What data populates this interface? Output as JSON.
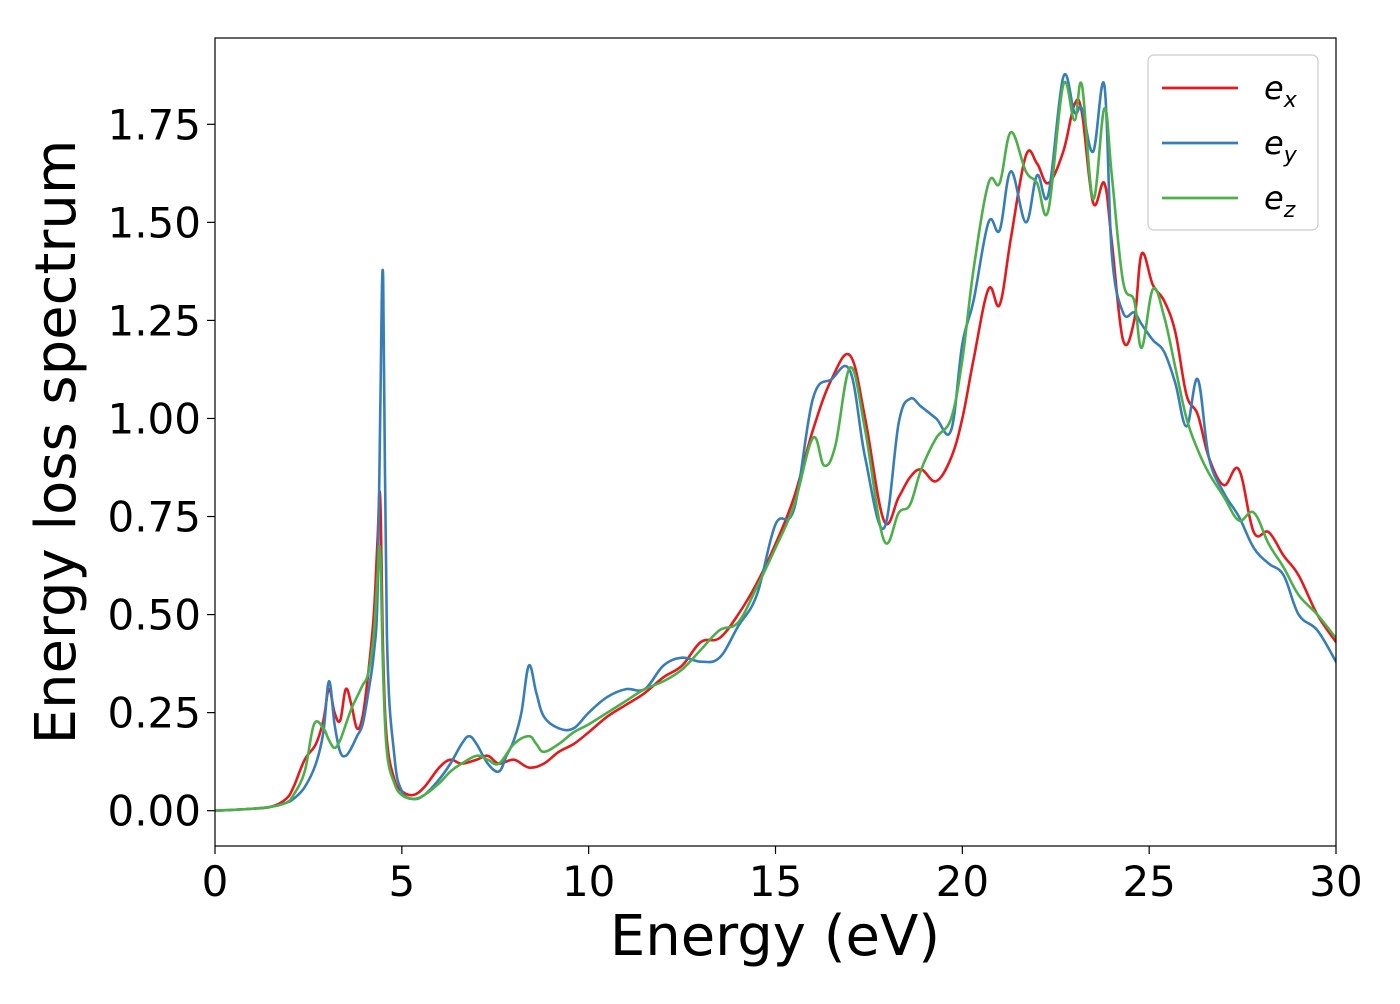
{
  "chart_data": {
    "type": "line",
    "title": "",
    "xlabel": "Energy (eV)",
    "ylabel": "Energy loss spectrum",
    "xlim": [
      0,
      30
    ],
    "ylim": [
      -0.09,
      1.97
    ],
    "xticks": [
      0,
      5,
      10,
      15,
      20,
      25,
      30
    ],
    "xtick_labels": [
      "0",
      "5",
      "10",
      "15",
      "20",
      "25",
      "30"
    ],
    "yticks": [
      0.0,
      0.25,
      0.5,
      0.75,
      1.0,
      1.25,
      1.5,
      1.75
    ],
    "ytick_labels": [
      "0.00",
      "0.25",
      "0.50",
      "0.75",
      "1.00",
      "1.25",
      "1.50",
      "1.75"
    ],
    "grid": false,
    "legend_position": "top-right",
    "series": [
      {
        "name": "e",
        "subscript": "x",
        "color": "#e41a1c",
        "x": [
          0,
          1,
          1.5,
          1.9,
          2.1,
          2.4,
          2.7,
          2.9,
          3.05,
          3.2,
          3.35,
          3.5,
          3.65,
          3.8,
          3.95,
          4.1,
          4.25,
          4.35,
          4.42,
          4.5,
          4.6,
          4.8,
          5.0,
          5.3,
          5.6,
          6.0,
          6.3,
          6.6,
          7.0,
          7.3,
          7.6,
          8.0,
          8.4,
          8.8,
          9.2,
          9.6,
          10.0,
          10.5,
          11.0,
          11.5,
          12.0,
          12.5,
          13.0,
          13.5,
          14.0,
          14.5,
          15.0,
          15.5,
          16.0,
          16.5,
          17.0,
          17.4,
          17.9,
          18.3,
          18.6,
          18.9,
          19.3,
          19.7,
          20.0,
          20.3,
          20.7,
          21.0,
          21.3,
          21.7,
          22.0,
          22.3,
          22.7,
          23.0,
          23.2,
          23.5,
          23.8,
          24.0,
          24.3,
          24.6,
          24.8,
          25.1,
          25.4,
          25.7,
          26.0,
          26.3,
          26.6,
          27.0,
          27.4,
          27.8,
          28.2,
          28.6,
          29.0,
          29.5,
          30.0
        ],
        "y": [
          0,
          0.005,
          0.01,
          0.03,
          0.06,
          0.13,
          0.17,
          0.23,
          0.31,
          0.25,
          0.23,
          0.31,
          0.27,
          0.21,
          0.24,
          0.35,
          0.5,
          0.69,
          0.8,
          0.4,
          0.18,
          0.08,
          0.05,
          0.04,
          0.06,
          0.11,
          0.13,
          0.12,
          0.13,
          0.14,
          0.12,
          0.13,
          0.11,
          0.12,
          0.15,
          0.17,
          0.2,
          0.24,
          0.27,
          0.3,
          0.34,
          0.37,
          0.43,
          0.44,
          0.5,
          0.58,
          0.68,
          0.8,
          0.97,
          1.1,
          1.16,
          1.0,
          0.74,
          0.8,
          0.85,
          0.87,
          0.84,
          0.9,
          1.0,
          1.15,
          1.33,
          1.29,
          1.46,
          1.67,
          1.65,
          1.6,
          1.68,
          1.8,
          1.78,
          1.55,
          1.6,
          1.45,
          1.2,
          1.25,
          1.42,
          1.34,
          1.3,
          1.22,
          1.06,
          1.01,
          0.9,
          0.83,
          0.87,
          0.71,
          0.71,
          0.65,
          0.6,
          0.5,
          0.43
        ]
      },
      {
        "name": "e",
        "subscript": "y",
        "color": "#377eb8",
        "x": [
          0,
          1,
          1.5,
          1.9,
          2.1,
          2.4,
          2.7,
          2.9,
          3.05,
          3.2,
          3.35,
          3.5,
          3.65,
          3.8,
          3.95,
          4.1,
          4.25,
          4.35,
          4.42,
          4.5,
          4.6,
          4.8,
          5.0,
          5.3,
          5.6,
          6.0,
          6.3,
          6.6,
          6.8,
          7.0,
          7.3,
          7.6,
          7.8,
          8.0,
          8.2,
          8.4,
          8.6,
          8.8,
          9.2,
          9.6,
          10.0,
          10.5,
          11.0,
          11.5,
          12.0,
          12.5,
          13.0,
          13.5,
          14.0,
          14.5,
          15.0,
          15.5,
          16.0,
          16.5,
          17.0,
          17.4,
          17.9,
          18.3,
          18.6,
          18.9,
          19.3,
          19.7,
          20.0,
          20.3,
          20.7,
          21.0,
          21.3,
          21.7,
          22.0,
          22.3,
          22.7,
          23.0,
          23.2,
          23.5,
          23.8,
          24.0,
          24.3,
          24.6,
          24.8,
          25.1,
          25.4,
          25.7,
          26.0,
          26.3,
          26.6,
          27.0,
          27.4,
          27.8,
          28.2,
          28.6,
          29.0,
          29.5,
          30.0
        ],
        "y": [
          0,
          0.005,
          0.01,
          0.02,
          0.03,
          0.06,
          0.12,
          0.2,
          0.33,
          0.22,
          0.15,
          0.14,
          0.16,
          0.19,
          0.22,
          0.3,
          0.4,
          0.55,
          1.0,
          1.36,
          0.45,
          0.14,
          0.05,
          0.03,
          0.04,
          0.08,
          0.12,
          0.17,
          0.19,
          0.17,
          0.12,
          0.1,
          0.14,
          0.18,
          0.25,
          0.37,
          0.3,
          0.24,
          0.21,
          0.21,
          0.25,
          0.29,
          0.31,
          0.31,
          0.37,
          0.39,
          0.38,
          0.39,
          0.47,
          0.55,
          0.73,
          0.77,
          1.05,
          1.1,
          1.12,
          0.9,
          0.72,
          0.99,
          1.05,
          1.03,
          1.0,
          0.97,
          1.19,
          1.3,
          1.5,
          1.48,
          1.63,
          1.5,
          1.62,
          1.57,
          1.87,
          1.78,
          1.79,
          1.68,
          1.85,
          1.42,
          1.27,
          1.27,
          1.24,
          1.2,
          1.17,
          1.09,
          0.98,
          1.1,
          0.9,
          0.81,
          0.75,
          0.67,
          0.63,
          0.6,
          0.5,
          0.46,
          0.38
        ]
      },
      {
        "name": "e",
        "subscript": "z",
        "color": "#4daf4a",
        "x": [
          0,
          1,
          1.5,
          1.9,
          2.1,
          2.4,
          2.65,
          2.9,
          3.05,
          3.2,
          3.35,
          3.5,
          3.65,
          3.8,
          3.95,
          4.1,
          4.25,
          4.35,
          4.42,
          4.5,
          4.6,
          4.8,
          5.0,
          5.3,
          5.6,
          6.0,
          6.3,
          6.6,
          7.0,
          7.3,
          7.6,
          8.0,
          8.4,
          8.6,
          8.8,
          9.2,
          9.6,
          10.0,
          10.5,
          11.0,
          11.5,
          12.0,
          12.5,
          13.0,
          13.5,
          14.0,
          14.5,
          15.0,
          15.5,
          16.0,
          16.3,
          16.6,
          17.0,
          17.4,
          17.9,
          18.3,
          18.6,
          18.9,
          19.3,
          19.7,
          20.0,
          20.3,
          20.7,
          21.0,
          21.3,
          21.7,
          22.0,
          22.3,
          22.7,
          23.0,
          23.2,
          23.5,
          23.8,
          24.0,
          24.3,
          24.6,
          24.8,
          25.1,
          25.4,
          25.7,
          26.0,
          26.3,
          26.6,
          27.0,
          27.4,
          27.8,
          28.2,
          28.6,
          29.0,
          29.5,
          30.0
        ],
        "y": [
          0,
          0.005,
          0.01,
          0.02,
          0.04,
          0.1,
          0.22,
          0.21,
          0.18,
          0.16,
          0.18,
          0.22,
          0.26,
          0.29,
          0.32,
          0.35,
          0.45,
          0.6,
          0.66,
          0.35,
          0.15,
          0.07,
          0.04,
          0.03,
          0.04,
          0.07,
          0.1,
          0.12,
          0.14,
          0.13,
          0.12,
          0.17,
          0.19,
          0.17,
          0.15,
          0.17,
          0.2,
          0.22,
          0.25,
          0.28,
          0.31,
          0.33,
          0.36,
          0.41,
          0.46,
          0.48,
          0.57,
          0.67,
          0.78,
          0.95,
          0.88,
          0.93,
          1.13,
          0.97,
          0.69,
          0.76,
          0.78,
          0.87,
          0.95,
          1.0,
          1.15,
          1.38,
          1.6,
          1.6,
          1.73,
          1.63,
          1.6,
          1.53,
          1.85,
          1.76,
          1.85,
          1.56,
          1.79,
          1.62,
          1.35,
          1.3,
          1.18,
          1.33,
          1.26,
          1.13,
          1.0,
          0.92,
          0.86,
          0.8,
          0.74,
          0.76,
          0.68,
          0.62,
          0.55,
          0.5,
          0.44
        ]
      }
    ]
  }
}
